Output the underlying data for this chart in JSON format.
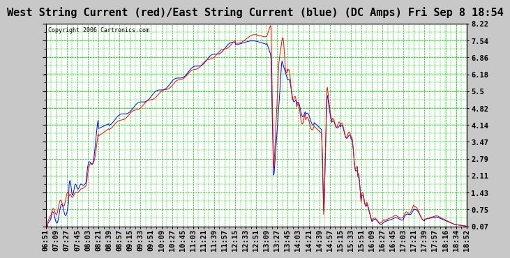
{
  "title": "West String Current (red)/East String Current (blue) (DC Amps) Fri Sep 8 18:54",
  "copyright": "Copyright 2006 Cartronics.com",
  "background_color": "#c8c8c8",
  "plot_bg_color": "#ffffff",
  "grid_color": "#00cc00",
  "y_ticks": [
    0.07,
    0.75,
    1.43,
    2.11,
    2.79,
    3.47,
    4.14,
    4.82,
    5.5,
    6.18,
    6.86,
    7.54,
    8.22
  ],
  "y_min": 0.07,
  "y_max": 8.22,
  "x_labels": [
    "06:51",
    "07:09",
    "07:27",
    "07:45",
    "08:03",
    "08:21",
    "08:39",
    "08:57",
    "09:15",
    "09:33",
    "09:51",
    "10:09",
    "10:27",
    "10:45",
    "11:03",
    "11:21",
    "11:39",
    "11:57",
    "12:15",
    "12:33",
    "12:51",
    "13:09",
    "13:27",
    "13:45",
    "14:03",
    "14:21",
    "14:39",
    "14:57",
    "15:15",
    "15:33",
    "15:51",
    "16:09",
    "16:27",
    "16:45",
    "17:03",
    "17:21",
    "17:39",
    "17:57",
    "18:16",
    "18:34",
    "18:52"
  ],
  "red_color": "#ff0000",
  "blue_color": "#0000ff",
  "title_fontsize": 11,
  "tick_fontsize": 7.5
}
